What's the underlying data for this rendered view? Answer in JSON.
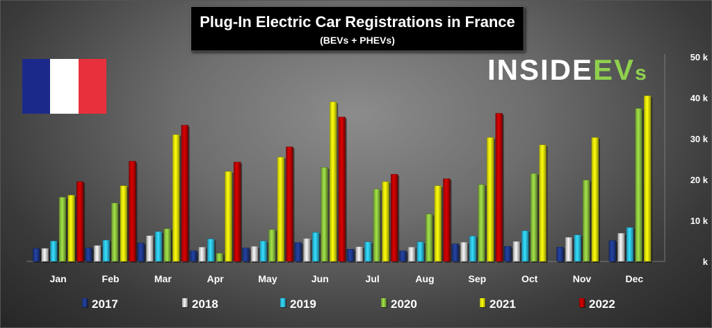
{
  "chart_data": {
    "type": "bar",
    "title": "Plug-In Electric Car Registrations in France",
    "subtitle": "(BEVs + PHEVs)",
    "categories": [
      "Jan",
      "Feb",
      "Mar",
      "Apr",
      "May",
      "Jun",
      "Jul",
      "Aug",
      "Sep",
      "Oct",
      "Nov",
      "Dec"
    ],
    "series": [
      {
        "name": "2017",
        "color": "#1f3a8f",
        "values": [
          3200,
          3300,
          4500,
          2600,
          3300,
          4600,
          3000,
          2600,
          4300,
          3700,
          3500,
          5100
        ]
      },
      {
        "name": "2018",
        "color": "#d8d8d8",
        "values": [
          3200,
          3900,
          6300,
          3500,
          3700,
          5600,
          3600,
          3500,
          4700,
          4900,
          5900,
          6900
        ]
      },
      {
        "name": "2019",
        "color": "#2ec4ef",
        "values": [
          5000,
          5200,
          7300,
          5500,
          5000,
          7100,
          4800,
          4800,
          6200,
          7500,
          6500,
          8300
        ]
      },
      {
        "name": "2020",
        "color": "#8fc640",
        "values": [
          15700,
          14300,
          8000,
          2000,
          7800,
          23000,
          17700,
          11600,
          18800,
          21500,
          19900,
          37400
        ]
      },
      {
        "name": "2021",
        "color": "#f2f20a",
        "values": [
          16200,
          18500,
          31000,
          22000,
          25500,
          39000,
          19500,
          18500,
          30300,
          28500,
          30300,
          40500
        ]
      },
      {
        "name": "2022",
        "color": "#c00000",
        "values": [
          19500,
          24500,
          33300,
          24300,
          28000,
          35300,
          21300,
          20200,
          36200,
          null,
          null,
          null
        ]
      }
    ],
    "ylim": [
      0,
      50000
    ],
    "ytick_values": [
      0,
      10000,
      20000,
      30000,
      40000,
      50000
    ],
    "ytick_labels": [
      "k",
      "10 k",
      "20 k",
      "30 k",
      "40 k",
      "50 k"
    ],
    "yaxis_position": "right",
    "grid": false,
    "legend_position": "bottom"
  },
  "logo": {
    "part1": "INSIDE",
    "part2": "EV",
    "part3": "s"
  },
  "flag": "france-flag"
}
